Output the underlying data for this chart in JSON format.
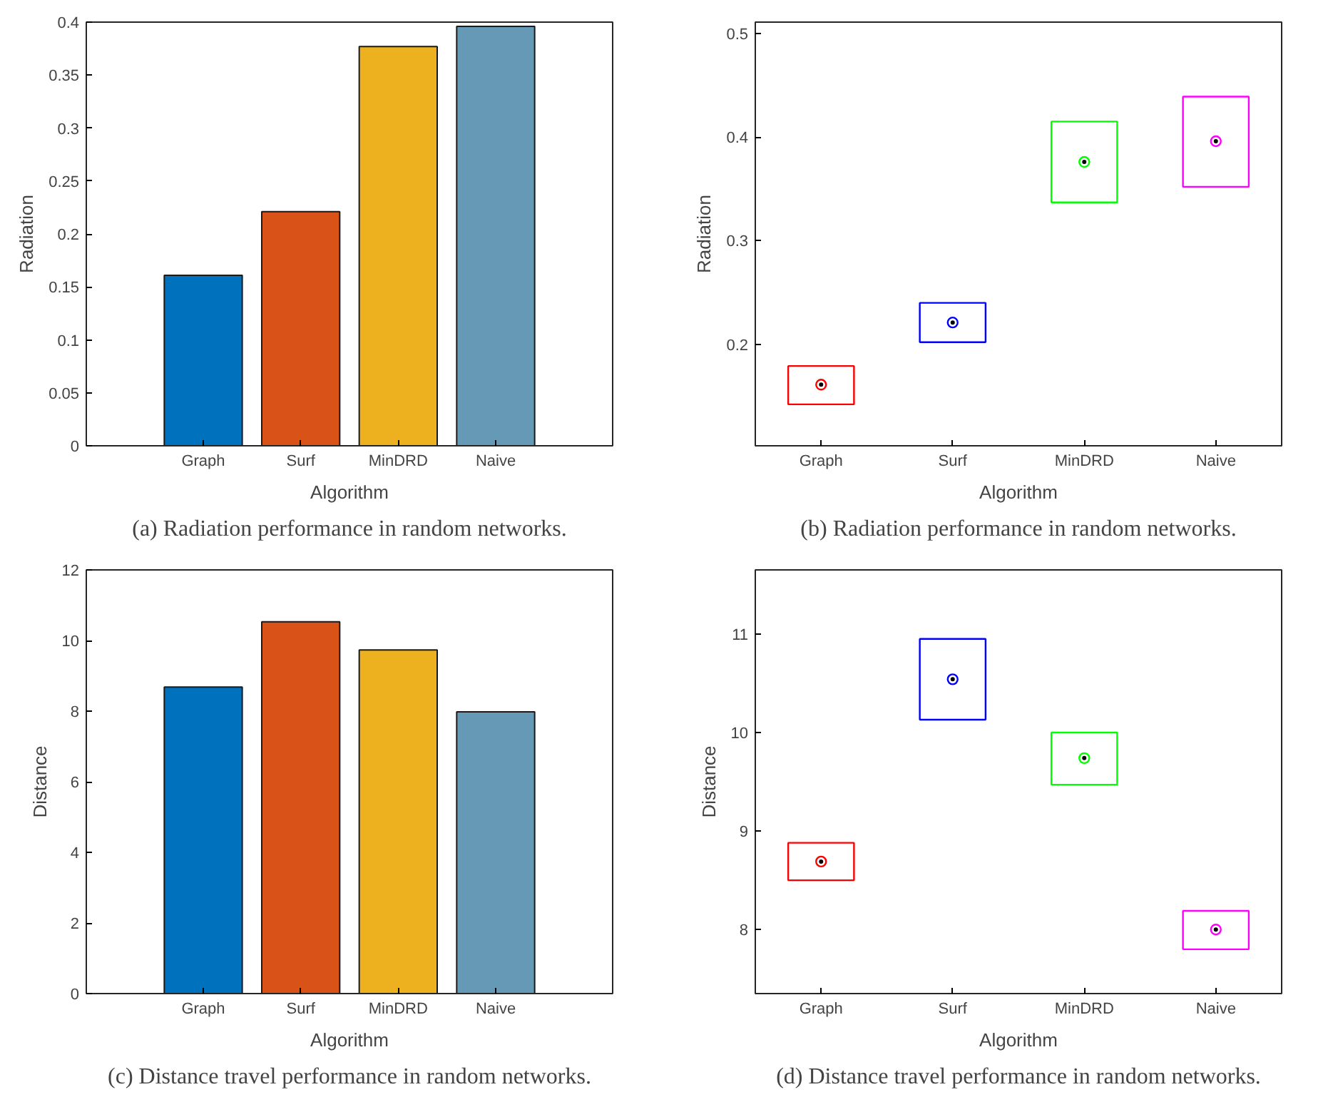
{
  "chart_data": [
    {
      "type": "bar",
      "xlabel": "Algorithm",
      "ylabel": "Radiation",
      "categories": [
        "Graph",
        "Surf",
        "MinDRD",
        "Naive"
      ],
      "values": [
        0.161,
        0.221,
        0.377,
        0.396
      ],
      "colors": [
        "#0072bd",
        "#d95319",
        "#edb120",
        "#6699b5"
      ],
      "ylim": [
        0,
        0.4
      ],
      "yticks": [
        0,
        0.05,
        0.1,
        0.15,
        0.2,
        0.25,
        0.3,
        0.35,
        0.4
      ],
      "annotations": [
        "(a) Radiation performance in random networks."
      ]
    },
    {
      "type": "box",
      "xlabel": "Algorithm",
      "ylabel": "Radiation",
      "categories": [
        "Graph",
        "Surf",
        "MinDRD",
        "Naive"
      ],
      "colors": [
        "#ff0000",
        "#0000ff",
        "#00ff00",
        "#ff00ff"
      ],
      "marker": "circle",
      "boxes": [
        {
          "low": 0.142,
          "q1": 0.142,
          "median": 0.161,
          "q3": 0.179,
          "high": 0.179
        },
        {
          "low": 0.202,
          "q1": 0.202,
          "median": 0.221,
          "q3": 0.24,
          "high": 0.24
        },
        {
          "low": 0.337,
          "q1": 0.337,
          "median": 0.376,
          "q3": 0.415,
          "high": 0.415
        },
        {
          "low": 0.352,
          "q1": 0.352,
          "median": 0.396,
          "q3": 0.439,
          "high": 0.439
        }
      ],
      "ylim": [
        0.102,
        0.511
      ],
      "yticks": [
        0.2,
        0.3,
        0.4,
        0.5
      ],
      "annotations": [
        "(b) Radiation performance in random networks."
      ]
    },
    {
      "type": "bar",
      "xlabel": "Algorithm",
      "ylabel": "Distance",
      "categories": [
        "Graph",
        "Surf",
        "MinDRD",
        "Naive"
      ],
      "values": [
        8.68,
        10.53,
        9.73,
        7.98
      ],
      "colors": [
        "#0072bd",
        "#d95319",
        "#edb120",
        "#6699b5"
      ],
      "ylim": [
        0,
        12
      ],
      "yticks": [
        0,
        2,
        4,
        6,
        8,
        10,
        12
      ],
      "annotations": [
        "(c) Distance travel performance in random networks."
      ]
    },
    {
      "type": "box",
      "xlabel": "Algorithm",
      "ylabel": "Distance",
      "categories": [
        "Graph",
        "Surf",
        "MinDRD",
        "Naive"
      ],
      "colors": [
        "#ff0000",
        "#0000ff",
        "#00ff00",
        "#ff00ff"
      ],
      "marker": "circle",
      "boxes": [
        {
          "low": 8.5,
          "q1": 8.5,
          "median": 8.69,
          "q3": 8.88,
          "high": 8.88
        },
        {
          "low": 10.13,
          "q1": 10.13,
          "median": 10.54,
          "q3": 10.95,
          "high": 10.95
        },
        {
          "low": 9.47,
          "q1": 9.47,
          "median": 9.74,
          "q3": 10.0,
          "high": 10.0
        },
        {
          "low": 7.8,
          "q1": 7.8,
          "median": 8.0,
          "q3": 8.19,
          "high": 8.19
        }
      ],
      "ylim": [
        7.35,
        11.65
      ],
      "yticks": [
        8,
        9,
        10,
        11
      ],
      "annotations": [
        "(d) Distance travel performance in random networks."
      ]
    }
  ]
}
